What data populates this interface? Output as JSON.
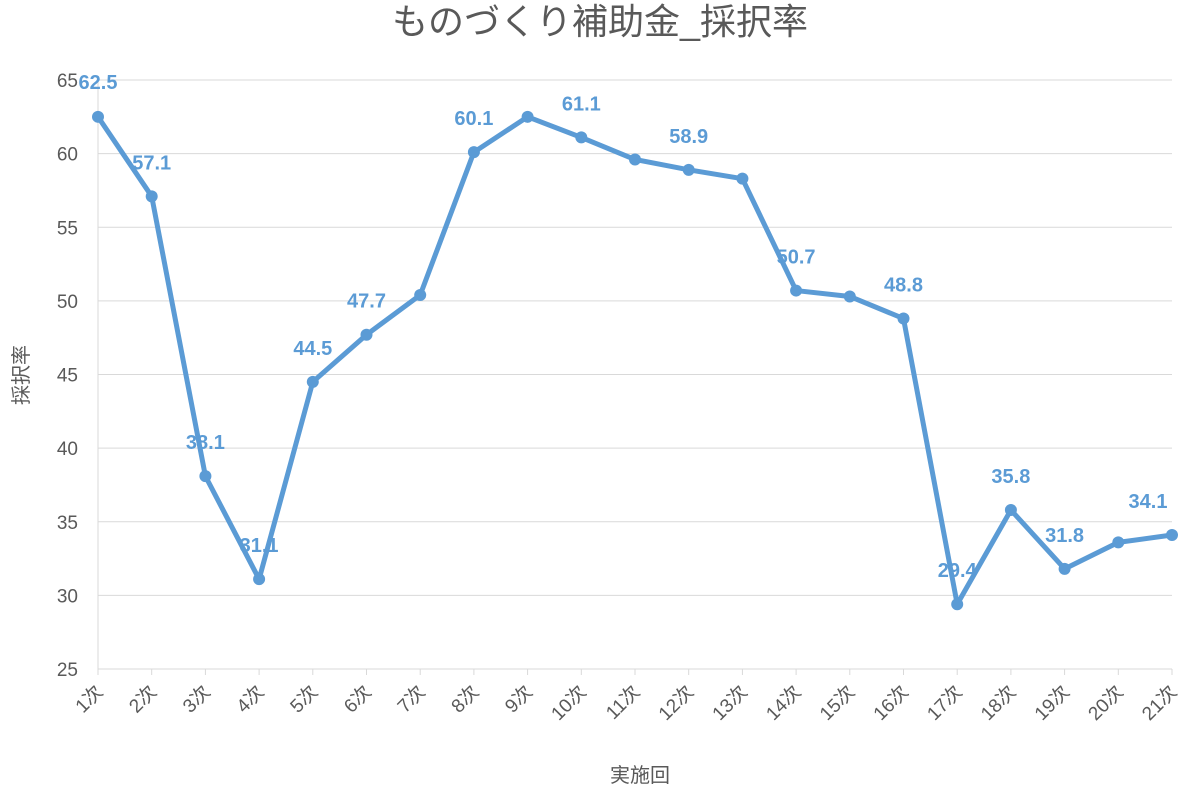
{
  "chart_data": {
    "type": "line",
    "title": "ものづくり補助金_採択率",
    "xlabel": "実施回",
    "ylabel": "採択率",
    "ylim": [
      25,
      65
    ],
    "yticks": [
      25,
      30,
      35,
      40,
      45,
      50,
      55,
      60,
      65
    ],
    "grid": true,
    "legend": "none",
    "color": "#5b9bd5",
    "categories": [
      "1次",
      "2次",
      "3次",
      "4次",
      "5次",
      "6次",
      "7次",
      "8次",
      "9次",
      "10次",
      "11次",
      "12次",
      "13次",
      "14次",
      "15次",
      "16次",
      "17次",
      "18次",
      "19次",
      "20次",
      "21次"
    ],
    "series": [
      {
        "values": [
          62.5,
          57.1,
          38.1,
          31.1,
          44.5,
          47.7,
          50.4,
          60.1,
          62.5,
          61.1,
          59.6,
          58.9,
          58.3,
          50.7,
          50.3,
          48.8,
          29.4,
          35.8,
          31.8,
          33.6,
          34.1
        ],
        "data_labels": {
          "0": "62.5",
          "1": "57.1",
          "2": "38.1",
          "3": "31.1",
          "4": "44.5",
          "5": "47.7",
          "7": "60.1",
          "9": "61.1",
          "11": "58.9",
          "13": "50.7",
          "15": "48.8",
          "16": "29.4",
          "17": "35.8",
          "18": "31.8",
          "20": "34.1"
        }
      }
    ]
  }
}
